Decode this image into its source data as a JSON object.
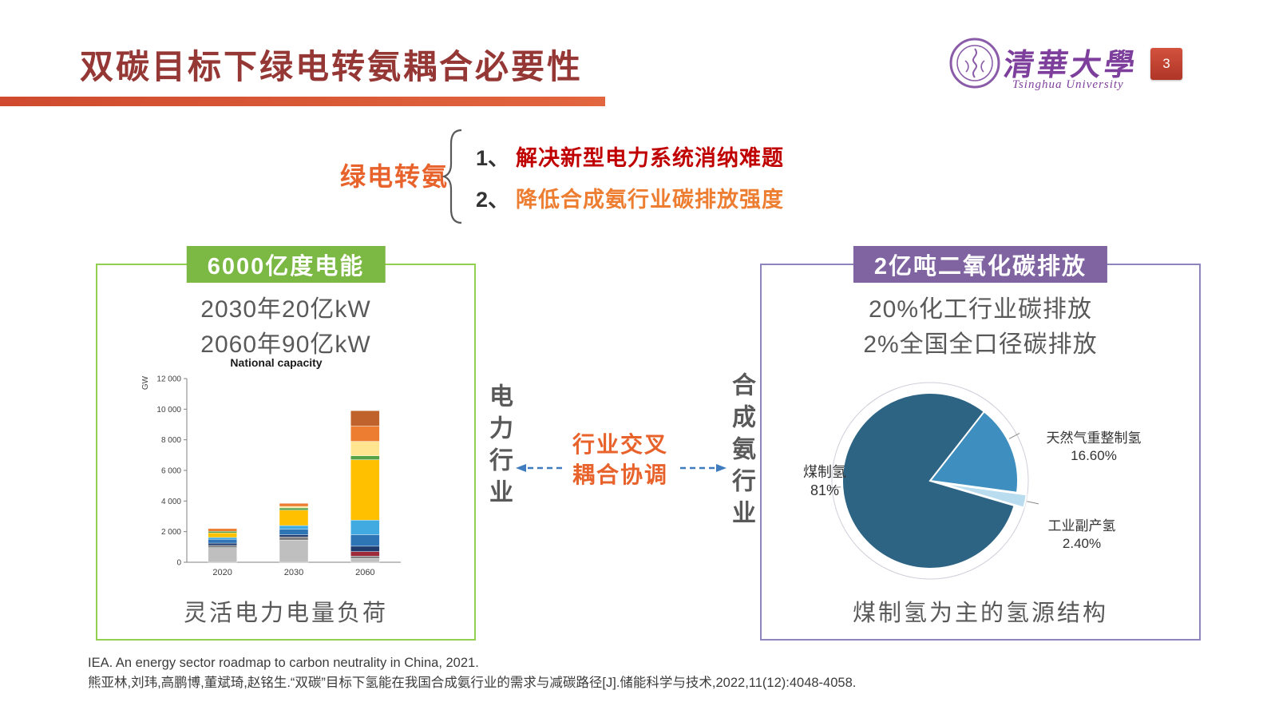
{
  "slide": {
    "title": "双碳目标下绿电转氨耦合必要性",
    "page_number": "3"
  },
  "logo": {
    "script_name": "清華大學",
    "subtitle": "Tsinghua University"
  },
  "intro": {
    "lead": "绿电转氨",
    "points": [
      {
        "num": "1、",
        "text": "解决新型电力系统消纳难题",
        "color": "#c00000"
      },
      {
        "num": "2、",
        "text": "降低合成氨行业碳排放强度",
        "color": "#ed7d31"
      }
    ]
  },
  "left_panel": {
    "header": "6000亿度电能",
    "lines": [
      "2030年20亿kW",
      "2060年90亿kW"
    ],
    "caption": "灵活电力电量负荷"
  },
  "middle": {
    "left_industry": "电力行业",
    "right_industry": "合成氨行业",
    "coupling_lines": [
      "行业交叉",
      "耦合协调"
    ]
  },
  "right_panel": {
    "header": "2亿吨二氧化碳排放",
    "lines": [
      "20%化工行业碳排放",
      "2%全国全口径碳排放"
    ],
    "caption": "煤制氢为主的氢源结构"
  },
  "references": [
    "IEA. An energy sector roadmap to carbon neutrality in China, 2021.",
    "熊亚林,刘玮,高鹏博,董斌琦,赵铭生.“双碳”目标下氢能在我国合成氨行业的需求与减碳路径[J].储能科学与技术,2022,11(12):4048-4058."
  ],
  "chart_data": [
    {
      "type": "bar",
      "stacked": true,
      "title": "National capacity",
      "xlabel": "",
      "ylabel": "GW",
      "categories": [
        "2020",
        "2030",
        "2060"
      ],
      "ylim": [
        0,
        12000
      ],
      "yticks": [
        0,
        2000,
        4000,
        6000,
        8000,
        10000,
        12000
      ],
      "ytick_labels": [
        "0",
        "2 000",
        "4 000",
        "6 000",
        "8 000",
        "10 000",
        "12 000"
      ],
      "series": [
        {
          "name": "gray",
          "color": "#bfbfbf",
          "values": [
            950,
            1450,
            250
          ]
        },
        {
          "name": "dark-gray",
          "color": "#808080",
          "values": [
            150,
            200,
            150
          ]
        },
        {
          "name": "dark-red",
          "color": "#9e2a3a",
          "values": [
            0,
            0,
            300
          ]
        },
        {
          "name": "navy",
          "color": "#1f3b6e",
          "values": [
            150,
            150,
            350
          ]
        },
        {
          "name": "blue",
          "color": "#2e75b6",
          "values": [
            250,
            350,
            750
          ]
        },
        {
          "name": "light-blue",
          "color": "#41aae1",
          "values": [
            120,
            250,
            950
          ]
        },
        {
          "name": "yellow",
          "color": "#ffc000",
          "values": [
            300,
            1000,
            3950
          ]
        },
        {
          "name": "green",
          "color": "#55a146",
          "values": [
            100,
            150,
            250
          ]
        },
        {
          "name": "light-yellow",
          "color": "#ffe58f",
          "values": [
            0,
            100,
            950
          ]
        },
        {
          "name": "orange",
          "color": "#ed7d31",
          "values": [
            180,
            200,
            1000
          ]
        },
        {
          "name": "brown",
          "color": "#c0622b",
          "values": [
            0,
            0,
            1000
          ]
        }
      ]
    },
    {
      "type": "pie",
      "start_angle_deg": 38,
      "draw_order": [
        1,
        2,
        0
      ],
      "exploded_index": 2,
      "slices": [
        {
          "label": "煤制氢",
          "pct": 81,
          "pct_label": "81%",
          "color": "#2d6484",
          "label_angle_deg": 266
        },
        {
          "label": "天然气重整制氢",
          "pct": 16.6,
          "pct_label": "16.60%",
          "color": "#3e8fbf",
          "label_angle_deg": 62
        },
        {
          "label": "工业副产氢",
          "pct": 2.4,
          "pct_label": "2.40%",
          "color": "#b9dcee",
          "label_angle_deg": 102
        }
      ]
    }
  ]
}
